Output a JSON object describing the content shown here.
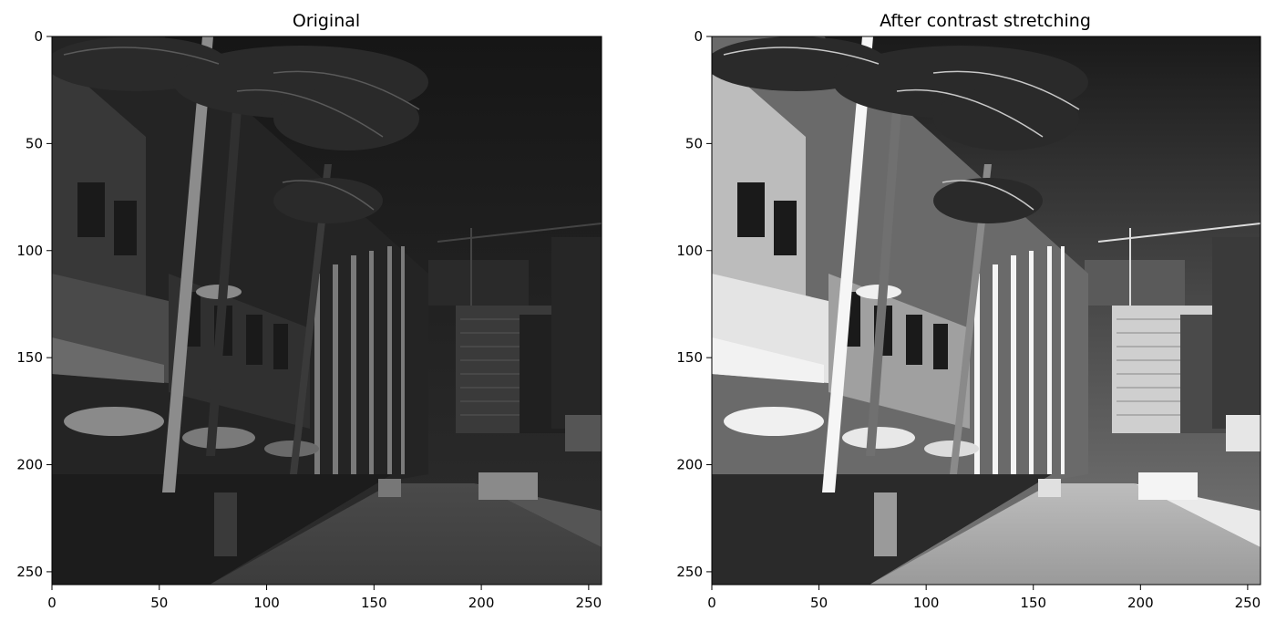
{
  "panels": [
    {
      "title": "Original",
      "variant": "original",
      "image_alt": "Grayscale street scene with palm trees, lamp posts, buildings and a road",
      "x_ticks": [
        "0",
        "50",
        "100",
        "150",
        "200",
        "250"
      ],
      "y_ticks": [
        "0",
        "50",
        "100",
        "150",
        "200",
        "250"
      ],
      "xlim": [
        0,
        256
      ],
      "ylim": [
        0,
        256
      ]
    },
    {
      "title": "After contrast stretching",
      "variant": "stretched",
      "image_alt": "Same street scene with stretched contrast, brighter highlights and deeper shadows",
      "x_ticks": [
        "0",
        "50",
        "100",
        "150",
        "200",
        "250"
      ],
      "y_ticks": [
        "0",
        "50",
        "100",
        "150",
        "200",
        "250"
      ],
      "xlim": [
        0,
        256
      ],
      "ylim": [
        0,
        256
      ]
    }
  ],
  "colors": {
    "axis": "#000000",
    "background": "#ffffff"
  }
}
